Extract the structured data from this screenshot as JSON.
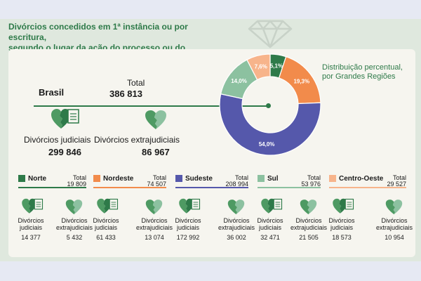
{
  "header": {
    "title_line1": "Divórcios concedidos em 1ª instância ou por escritura,",
    "title_line2": "segundo o lugar da ação do processo ou do registro"
  },
  "brasil": {
    "label": "Brasil",
    "total_label": "Total",
    "total_value": "386 813",
    "judiciais_label": "Divórcios judiciais",
    "judiciais_value": "299 846",
    "extrajudiciais_label": "Divórcios extrajudiciais",
    "extrajudiciais_value": "86 967"
  },
  "distribution_label_line1": "Distribuição percentual,",
  "distribution_label_line2": "por Grandes Regiões",
  "chart_data": {
    "type": "pie",
    "categories": [
      "Norte",
      "Nordeste",
      "Sudeste",
      "Sul",
      "Centro-Oeste"
    ],
    "values": [
      5.1,
      19.3,
      54.0,
      14.0,
      7.6
    ],
    "labels": [
      "5,1%",
      "19,3%",
      "54,0%",
      "14,0%",
      "7,6%"
    ],
    "colors": [
      "#2e7a49",
      "#f28b4b",
      "#5558ab",
      "#8cc1a0",
      "#f7b48b"
    ],
    "donut": true
  },
  "regions": [
    {
      "name": "Norte",
      "color": "#2e7a49",
      "total_label": "Total",
      "total": "19 809",
      "judiciais_label_1": "Divórcios",
      "judiciais_label_2": "judiciais",
      "judiciais": "14 377",
      "extra_label_1": "Divórcios",
      "extra_label_2": "extrajudiciais",
      "extra": "5 432"
    },
    {
      "name": "Nordeste",
      "color": "#f28b4b",
      "total_label": "Total",
      "total": "74 507",
      "judiciais_label_1": "Divórcios",
      "judiciais_label_2": "judiciais",
      "judiciais": "61 433",
      "extra_label_1": "Divórcios",
      "extra_label_2": "extrajudiciais",
      "extra": "13 074"
    },
    {
      "name": "Sudeste",
      "color": "#5558ab",
      "total_label": "Total",
      "total": "208 994",
      "judiciais_label_1": "Divórcios",
      "judiciais_label_2": "judiciais",
      "judiciais": "172 992",
      "extra_label_1": "Divórcios",
      "extra_label_2": "extrajudiciais",
      "extra": "36 002"
    },
    {
      "name": "Sul",
      "color": "#8cc1a0",
      "total_label": "Total",
      "total": "53 976",
      "judiciais_label_1": "Divórcios",
      "judiciais_label_2": "judiciais",
      "judiciais": "32 471",
      "extra_label_1": "Divórcios",
      "extra_label_2": "extrajudiciais",
      "extra": "21 505"
    },
    {
      "name": "Centro-Oeste",
      "color": "#f7b48b",
      "total_label": "Total",
      "total": "29 527",
      "judiciais_label_1": "Divórcios",
      "judiciais_label_2": "judiciais",
      "judiciais": "18 573",
      "extra_label_1": "Divórcios",
      "extra_label_2": "extrajudiciais",
      "extra": "10 954"
    }
  ],
  "icons": {
    "heart_document": "broken-heart-document-icon",
    "heart_broken": "broken-heart-icon",
    "gem": "diamond-outline-icon"
  }
}
